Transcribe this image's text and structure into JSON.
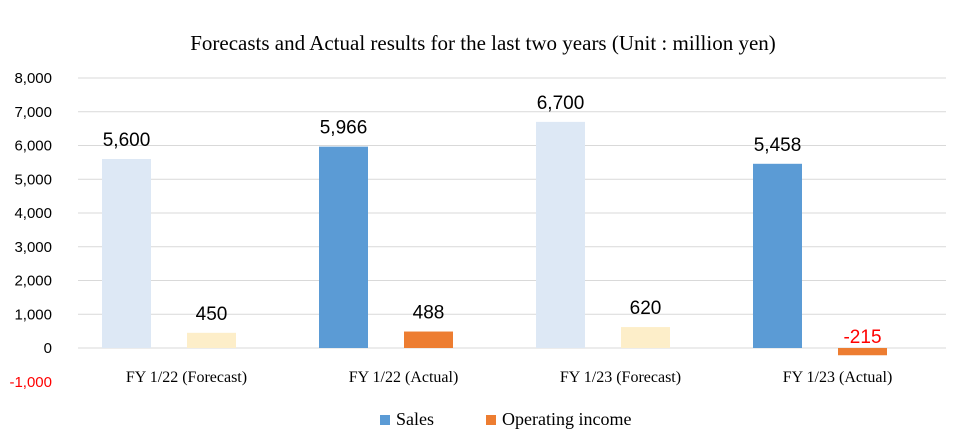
{
  "chart_data": {
    "type": "bar",
    "title": "Forecasts and Actual results for the last two years (Unit : million yen)",
    "xlabel": "",
    "ylabel": "",
    "ylim": [
      -1000,
      8000
    ],
    "yticks": [
      -1000,
      0,
      1000,
      2000,
      3000,
      4000,
      5000,
      6000,
      7000,
      8000
    ],
    "ytick_labels": [
      "-1,000",
      "0",
      "1,000",
      "2,000",
      "3,000",
      "4,000",
      "5,000",
      "6,000",
      "7,000",
      "8,000"
    ],
    "categories": [
      "FY 1/22 (Forecast)",
      "FY 1/22 (Actual)",
      "FY 1/23 (Forecast)",
      "FY 1/23 (Actual)"
    ],
    "series": [
      {
        "name": "Sales",
        "values": [
          5600,
          5966,
          6700,
          5458
        ],
        "labels": [
          "5,600",
          "5,966",
          "6,700",
          "5,458"
        ],
        "colors": [
          "#dde8f5",
          "#5b9bd5",
          "#dde8f5",
          "#5b9bd5"
        ]
      },
      {
        "name": "Operating income",
        "values": [
          450,
          488,
          620,
          -215
        ],
        "labels": [
          "450",
          "488",
          "620",
          "-215"
        ],
        "colors": [
          "#fdeec9",
          "#ed7d31",
          "#fdeec9",
          "#ed7d31"
        ],
        "label_colors": [
          "#000000",
          "#000000",
          "#000000",
          "#ff0000"
        ]
      }
    ],
    "legend": {
      "position": "bottom",
      "items": [
        {
          "label": "Sales",
          "color": "#5b9bd5"
        },
        {
          "label": "Operating income",
          "color": "#ed7d31"
        }
      ]
    },
    "grid": true,
    "colors": {
      "grid": "#d9d9d9",
      "axis_label": "#000000",
      "negative_tick": "#ff0000"
    }
  }
}
